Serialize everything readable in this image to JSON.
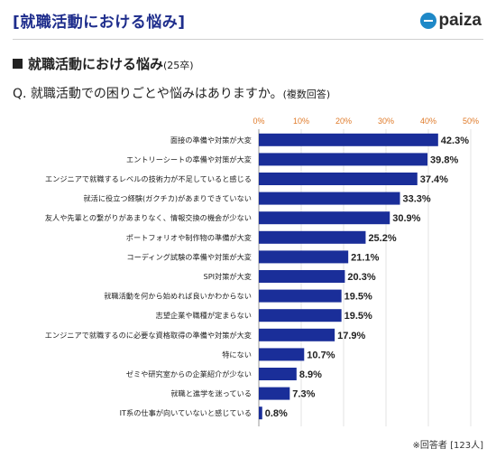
{
  "header": {
    "title": "[就職活動における悩み]",
    "logo_text": "paiza",
    "logo_color": "#1e88c7"
  },
  "subtitle": {
    "main": "就職活動における悩み",
    "cohort": "(25卒)"
  },
  "question": {
    "text": "Q. 就職活動での困りごとや悩みはありますか。",
    "note": "(複数回答)"
  },
  "footnote": "※回答者 [123人]",
  "chart_data": {
    "type": "bar",
    "orientation": "horizontal",
    "bar_color": "#1a2e99",
    "xlim": [
      0,
      50
    ],
    "ticks": [
      "0%",
      "10%",
      "20%",
      "30%",
      "40%",
      "50%"
    ],
    "tick_values": [
      0,
      10,
      20,
      30,
      40,
      50
    ],
    "grid": true,
    "categories": [
      "面接の準備や対策が大変",
      "エントリーシートの準備や対策が大変",
      "エンジニアで就職するレベルの技術力が不足していると感じる",
      "就活に役立つ経験(ガクチカ)があまりできていない",
      "友人や先輩との繋がりがあまりなく、情報交換の機会が少ない",
      "ポートフォリオや制作物の準備が大変",
      "コーディング試験の準備や対策が大変",
      "SPI対策が大変",
      "就職活動を何から始めれば良いかわからない",
      "志望企業や職種が定まらない",
      "エンジニアで就職するのに必要な資格取得の準備や対策が大変",
      "特にない",
      "ゼミや研究室からの企業紹介が少ない",
      "就職と進学を迷っている",
      "IT系の仕事が向いていないと感じている"
    ],
    "values": [
      42.3,
      39.8,
      37.4,
      33.3,
      30.9,
      25.2,
      21.1,
      20.3,
      19.5,
      19.5,
      17.9,
      10.7,
      8.9,
      7.3,
      0.8
    ],
    "value_labels": [
      "42.3%",
      "39.8%",
      "37.4%",
      "33.3%",
      "30.9%",
      "25.2%",
      "21.1%",
      "20.3%",
      "19.5%",
      "19.5%",
      "17.9%",
      "10.7%",
      "8.9%",
      "7.3%",
      "0.8%"
    ]
  }
}
